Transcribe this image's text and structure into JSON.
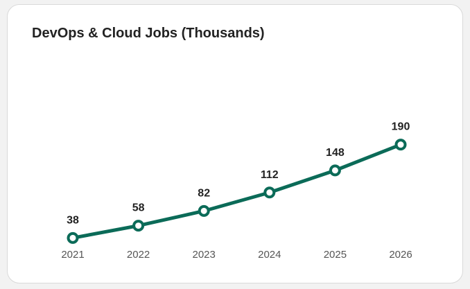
{
  "chart_data": {
    "type": "line",
    "title": "DevOps & Cloud Jobs (Thousands)",
    "x": [
      "2021",
      "2022",
      "2023",
      "2024",
      "2025",
      "2026"
    ],
    "series": [
      {
        "values": [
          38,
          58,
          82,
          112,
          148,
          190
        ]
      }
    ],
    "data_labels": [
      "38",
      "58",
      "82",
      "112",
      "148",
      "190"
    ],
    "xlabel": "",
    "ylabel": "",
    "ylim": [
      0,
      230
    ],
    "grid": false,
    "legend": "none"
  },
  "colors": {
    "line": "#0b6b58",
    "marker_fill": "#ffffff"
  }
}
